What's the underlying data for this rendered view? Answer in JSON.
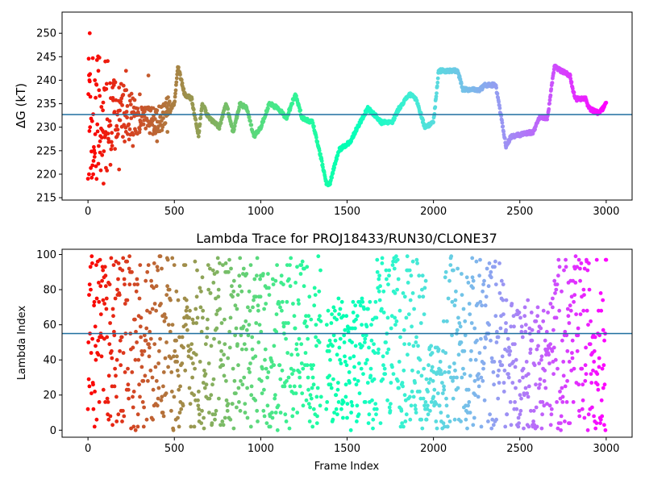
{
  "chart_data": [
    {
      "type": "scatter",
      "title": "",
      "xlabel": "",
      "ylabel": "ΔG (kT)",
      "xlim": [
        -150,
        3150
      ],
      "ylim": [
        214.5,
        254.5
      ],
      "xticks": [
        0,
        500,
        1000,
        1500,
        2000,
        2500,
        3000
      ],
      "yticks": [
        215,
        220,
        225,
        230,
        235,
        240,
        245,
        250
      ],
      "grid": false,
      "colormap": "rainbow",
      "hline": {
        "y": 232.7,
        "color": "#1f6f9f"
      },
      "x_range": [
        0,
        3000
      ],
      "trace_keypoints": [
        {
          "x": 0,
          "y": 232
        },
        {
          "x": 120,
          "y": 232
        },
        {
          "x": 200,
          "y": 233
        },
        {
          "x": 300,
          "y": 232
        },
        {
          "x": 400,
          "y": 231
        },
        {
          "x": 500,
          "y": 235
        },
        {
          "x": 520,
          "y": 243
        },
        {
          "x": 560,
          "y": 237
        },
        {
          "x": 600,
          "y": 236
        },
        {
          "x": 640,
          "y": 228
        },
        {
          "x": 660,
          "y": 235
        },
        {
          "x": 700,
          "y": 232
        },
        {
          "x": 760,
          "y": 230
        },
        {
          "x": 800,
          "y": 235
        },
        {
          "x": 840,
          "y": 229
        },
        {
          "x": 880,
          "y": 235
        },
        {
          "x": 920,
          "y": 234
        },
        {
          "x": 960,
          "y": 228
        },
        {
          "x": 1000,
          "y": 230
        },
        {
          "x": 1050,
          "y": 235
        },
        {
          "x": 1100,
          "y": 234
        },
        {
          "x": 1150,
          "y": 232
        },
        {
          "x": 1200,
          "y": 237
        },
        {
          "x": 1240,
          "y": 232
        },
        {
          "x": 1300,
          "y": 231
        },
        {
          "x": 1340,
          "y": 225
        },
        {
          "x": 1380,
          "y": 218
        },
        {
          "x": 1400,
          "y": 218
        },
        {
          "x": 1450,
          "y": 225
        },
        {
          "x": 1520,
          "y": 227
        },
        {
          "x": 1560,
          "y": 230
        },
        {
          "x": 1620,
          "y": 234
        },
        {
          "x": 1650,
          "y": 233
        },
        {
          "x": 1700,
          "y": 231
        },
        {
          "x": 1760,
          "y": 231
        },
        {
          "x": 1800,
          "y": 234
        },
        {
          "x": 1860,
          "y": 237
        },
        {
          "x": 1900,
          "y": 236
        },
        {
          "x": 1950,
          "y": 230
        },
        {
          "x": 2000,
          "y": 231
        },
        {
          "x": 2030,
          "y": 242
        },
        {
          "x": 2140,
          "y": 242
        },
        {
          "x": 2170,
          "y": 238
        },
        {
          "x": 2270,
          "y": 238
        },
        {
          "x": 2300,
          "y": 239
        },
        {
          "x": 2360,
          "y": 239
        },
        {
          "x": 2420,
          "y": 226
        },
        {
          "x": 2450,
          "y": 228
        },
        {
          "x": 2580,
          "y": 229
        },
        {
          "x": 2610,
          "y": 232
        },
        {
          "x": 2660,
          "y": 232
        },
        {
          "x": 2700,
          "y": 243
        },
        {
          "x": 2740,
          "y": 242
        },
        {
          "x": 2790,
          "y": 241
        },
        {
          "x": 2820,
          "y": 236
        },
        {
          "x": 2880,
          "y": 236
        },
        {
          "x": 2900,
          "y": 234
        },
        {
          "x": 2960,
          "y": 233
        },
        {
          "x": 3000,
          "y": 235
        }
      ],
      "early_scatter_points": [
        {
          "x": 10,
          "y": 250
        },
        {
          "x": 8,
          "y": 240
        },
        {
          "x": 12,
          "y": 230
        },
        {
          "x": 6,
          "y": 220
        },
        {
          "x": 30,
          "y": 220
        },
        {
          "x": 50,
          "y": 219
        },
        {
          "x": 40,
          "y": 240
        },
        {
          "x": 60,
          "y": 242
        },
        {
          "x": 70,
          "y": 227
        },
        {
          "x": 90,
          "y": 218
        },
        {
          "x": 100,
          "y": 244
        },
        {
          "x": 130,
          "y": 222
        },
        {
          "x": 150,
          "y": 240
        },
        {
          "x": 180,
          "y": 221
        },
        {
          "x": 220,
          "y": 242
        },
        {
          "x": 260,
          "y": 226
        },
        {
          "x": 300,
          "y": 237
        },
        {
          "x": 350,
          "y": 241
        },
        {
          "x": 400,
          "y": 227
        },
        {
          "x": 460,
          "y": 229
        }
      ]
    },
    {
      "type": "scatter",
      "title": "Lambda Trace for PROJ18433/RUN30/CLONE37",
      "xlabel": "Frame Index",
      "ylabel": "Lambda Index",
      "xlim": [
        -150,
        3150
      ],
      "ylim": [
        -4,
        103
      ],
      "xticks": [
        0,
        500,
        1000,
        1500,
        2000,
        2500,
        3000
      ],
      "yticks": [
        0,
        20,
        40,
        60,
        80,
        100
      ],
      "grid": false,
      "colormap": "rainbow",
      "hline": {
        "y": 55,
        "color": "#1f6f9f"
      },
      "x_range": [
        0,
        3000
      ],
      "value_range": [
        0,
        99
      ],
      "occupancy_bands": [
        {
          "x_start": 0,
          "x_end": 1350,
          "y_min": 0,
          "y_max": 99
        },
        {
          "x_start": 1380,
          "x_end": 1650,
          "y_min": 0,
          "y_max": 75
        },
        {
          "x_start": 1650,
          "x_end": 1960,
          "y_min": 0,
          "y_max": 99
        },
        {
          "x_start": 1960,
          "x_end": 2060,
          "y_min": 0,
          "y_max": 50
        },
        {
          "x_start": 2060,
          "x_end": 2420,
          "y_min": 0,
          "y_max": 99
        },
        {
          "x_start": 2420,
          "x_end": 2690,
          "y_min": 0,
          "y_max": 75
        },
        {
          "x_start": 2690,
          "x_end": 3000,
          "y_min": 0,
          "y_max": 99
        }
      ]
    }
  ]
}
